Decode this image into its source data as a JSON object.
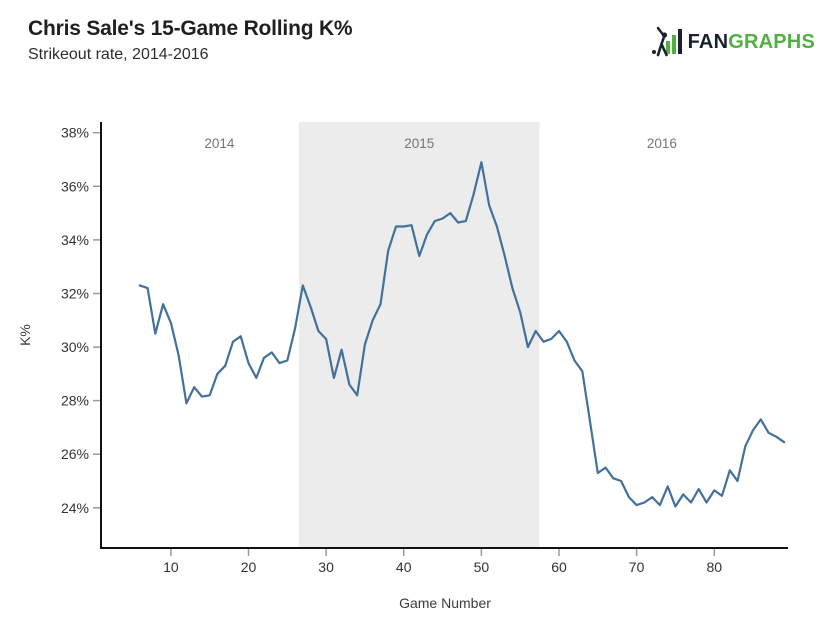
{
  "header": {
    "title": "Chris Sale's 15-Game Rolling K%",
    "subtitle": "Strikeout rate, 2014-2016"
  },
  "logo": {
    "fan": "FAN",
    "graphs": "GRAPHS",
    "green": "#52b043",
    "dark": "#17222b"
  },
  "chart_data": {
    "type": "line",
    "title": "Chris Sale's 15-Game Rolling K%",
    "subtitle": "Strikeout rate, 2014-2016",
    "series_name": "15-game rolling strikeout rate",
    "xlabel": "Game Number",
    "ylabel": "K%",
    "x": [
      6,
      7,
      8,
      9,
      10,
      11,
      12,
      13,
      14,
      15,
      16,
      17,
      18,
      19,
      20,
      21,
      22,
      23,
      24,
      25,
      26,
      27,
      28,
      29,
      30,
      31,
      32,
      33,
      34,
      35,
      36,
      37,
      38,
      39,
      40,
      41,
      42,
      43,
      44,
      45,
      46,
      47,
      48,
      49,
      50,
      51,
      52,
      53,
      54,
      55,
      56,
      57,
      58,
      59,
      60,
      61,
      62,
      63,
      64,
      65,
      66,
      67,
      68,
      69,
      70,
      71,
      72,
      73,
      74,
      75,
      76,
      77,
      78,
      79,
      80,
      81,
      82,
      83,
      84,
      85,
      86,
      87,
      88,
      89
    ],
    "values": [
      32.3,
      32.2,
      30.5,
      31.6,
      30.9,
      29.7,
      27.9,
      28.5,
      28.15,
      28.2,
      29.0,
      29.3,
      30.2,
      30.4,
      29.4,
      28.85,
      29.6,
      29.8,
      29.4,
      29.5,
      30.7,
      32.3,
      31.5,
      30.6,
      30.3,
      28.85,
      29.9,
      28.6,
      28.2,
      30.1,
      31.0,
      31.6,
      33.6,
      34.5,
      34.5,
      34.55,
      33.4,
      34.2,
      34.7,
      34.8,
      35.0,
      34.65,
      34.7,
      35.7,
      36.9,
      35.3,
      34.5,
      33.4,
      32.2,
      31.3,
      30.0,
      30.6,
      30.2,
      30.3,
      30.6,
      30.2,
      29.5,
      29.1,
      27.2,
      25.3,
      25.5,
      25.1,
      25.0,
      24.4,
      24.1,
      24.2,
      24.4,
      24.1,
      24.8,
      24.05,
      24.5,
      24.2,
      24.7,
      24.2,
      24.65,
      24.45,
      25.4,
      25.0,
      26.3,
      26.9,
      27.3,
      26.8,
      26.65,
      26.45
    ],
    "xlim": [
      1,
      89.5
    ],
    "ylim": [
      22.5,
      38.4
    ],
    "xticks": [
      10,
      20,
      30,
      40,
      50,
      60,
      70,
      80
    ],
    "yticks": [
      24,
      26,
      28,
      30,
      32,
      34,
      36,
      38
    ],
    "ytick_suffix": "%",
    "grid": false,
    "legend": "none",
    "shaded_regions": [
      {
        "label": "2015",
        "x0": 26.5,
        "x1": 57.5,
        "color": "#ececec"
      }
    ],
    "annotations": [
      {
        "label": "2014",
        "x0": 6,
        "x1": 26.5
      },
      {
        "label": "2015",
        "x0": 26.5,
        "x1": 57.5
      },
      {
        "label": "2016",
        "x0": 57.5,
        "x1": 89
      }
    ],
    "line_color": "#41719c",
    "axis_color": "#111111",
    "tick_color": "#999999",
    "tick_text_color": "#333333",
    "year_text_color": "#757575"
  }
}
